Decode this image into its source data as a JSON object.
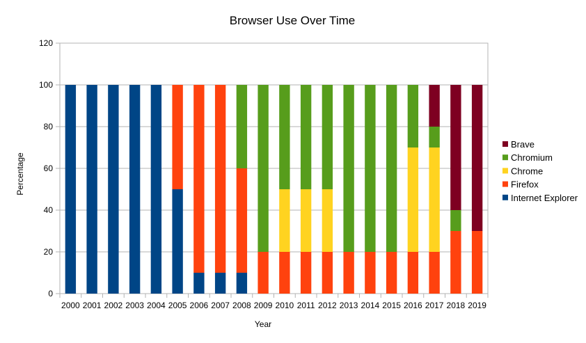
{
  "chart_data": {
    "type": "bar",
    "stacked": true,
    "title": "Browser Use Over Time",
    "xlabel": "Year",
    "ylabel": "Percentage",
    "ylim": [
      0,
      120
    ],
    "yticks": [
      0,
      20,
      40,
      60,
      80,
      100,
      120
    ],
    "grid": true,
    "legend_position": "right",
    "categories": [
      "2000",
      "2001",
      "2002",
      "2003",
      "2004",
      "2005",
      "2006",
      "2007",
      "2008",
      "2009",
      "2010",
      "2011",
      "2012",
      "2013",
      "2014",
      "2015",
      "2016",
      "2017",
      "2018",
      "2019"
    ],
    "series": [
      {
        "name": "Internet Explorer",
        "color": "#004586",
        "values": [
          100,
          100,
          100,
          100,
          100,
          50,
          10,
          10,
          10,
          0,
          0,
          0,
          0,
          0,
          0,
          0,
          0,
          0,
          0,
          0
        ]
      },
      {
        "name": "Firefox",
        "color": "#ff420e",
        "values": [
          0,
          0,
          0,
          0,
          0,
          50,
          90,
          90,
          50,
          20,
          20,
          20,
          20,
          20,
          20,
          20,
          20,
          20,
          30,
          30
        ]
      },
      {
        "name": "Chrome",
        "color": "#ffd320",
        "values": [
          0,
          0,
          0,
          0,
          0,
          0,
          0,
          0,
          0,
          0,
          30,
          30,
          30,
          0,
          0,
          0,
          50,
          50,
          0,
          0
        ]
      },
      {
        "name": "Chromium",
        "color": "#579d1c",
        "values": [
          0,
          0,
          0,
          0,
          0,
          0,
          0,
          0,
          40,
          80,
          50,
          50,
          50,
          80,
          80,
          80,
          30,
          10,
          10,
          0
        ]
      },
      {
        "name": "Brave",
        "color": "#7e0021",
        "values": [
          0,
          0,
          0,
          0,
          0,
          0,
          0,
          0,
          0,
          0,
          0,
          0,
          0,
          0,
          0,
          0,
          0,
          20,
          60,
          70
        ]
      }
    ]
  }
}
